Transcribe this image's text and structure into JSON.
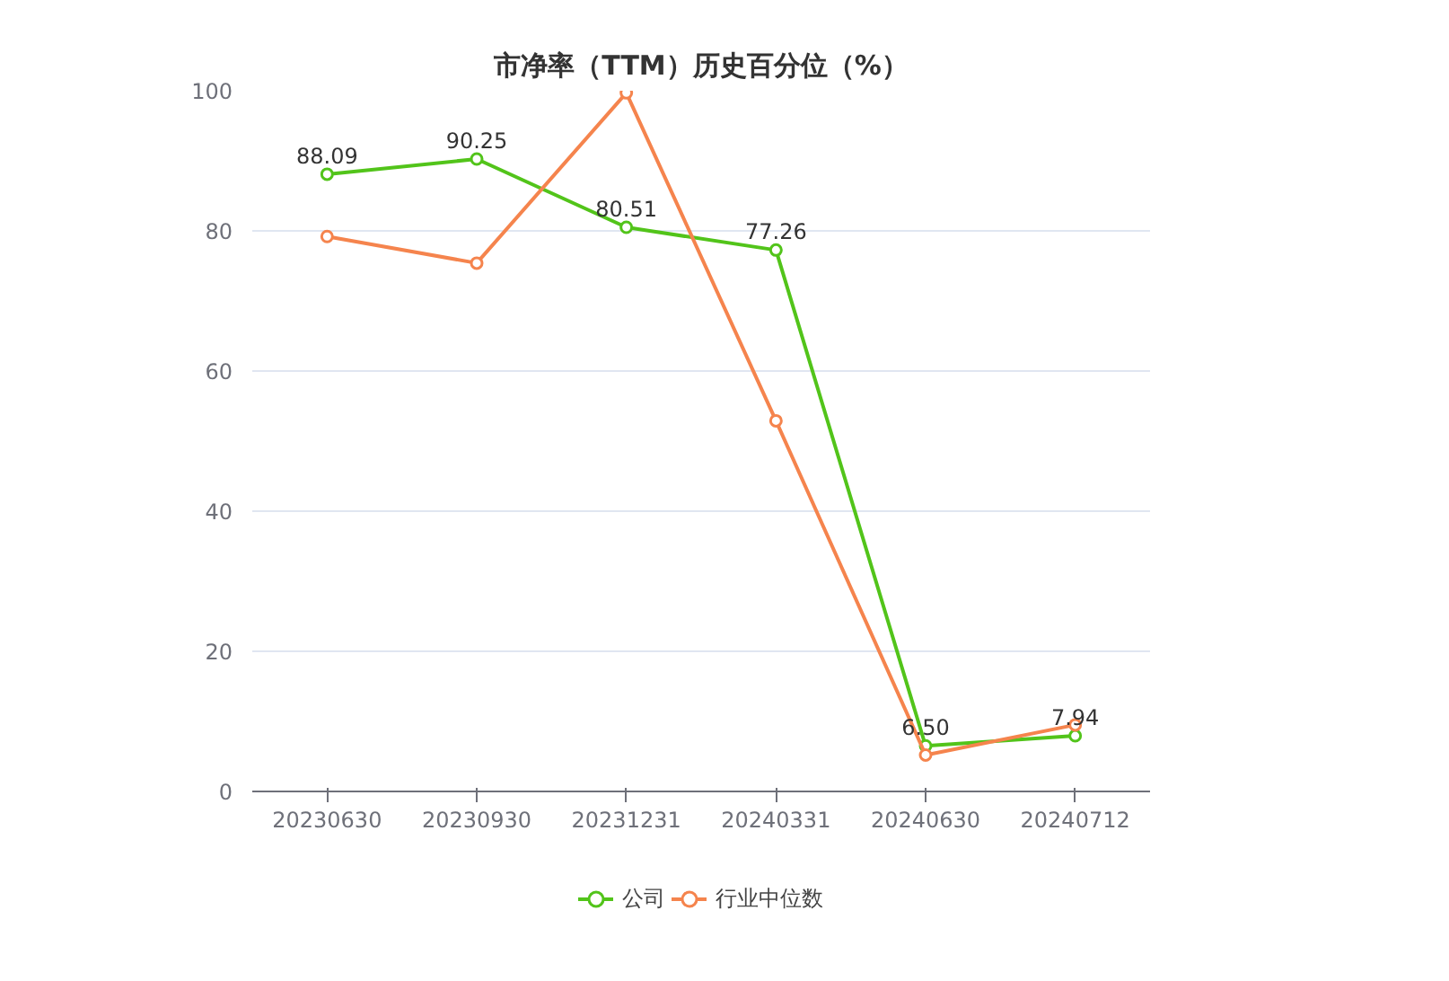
{
  "chart_data": {
    "type": "line",
    "title": "市净率（TTM）历史百分位（%）",
    "categories": [
      "20230630",
      "20230930",
      "20231231",
      "20240331",
      "20240630",
      "20240712"
    ],
    "series": [
      {
        "name": "公司",
        "color": "#52c41a",
        "values": [
          88.09,
          90.25,
          80.51,
          77.26,
          6.5,
          7.94
        ],
        "value_labels": [
          "88.09",
          "90.25",
          "80.51",
          "77.26",
          "6.50",
          "7.94"
        ]
      },
      {
        "name": "行业中位数",
        "color": "#f5844d",
        "values": [
          79.2,
          75.4,
          99.7,
          52.9,
          5.2,
          9.5
        ]
      }
    ],
    "ylim": [
      0,
      100
    ],
    "yticks": [
      0,
      20,
      40,
      60,
      80,
      100
    ],
    "grid": "y",
    "legend": "bottom",
    "marker": "circle",
    "line_style": "solid"
  }
}
